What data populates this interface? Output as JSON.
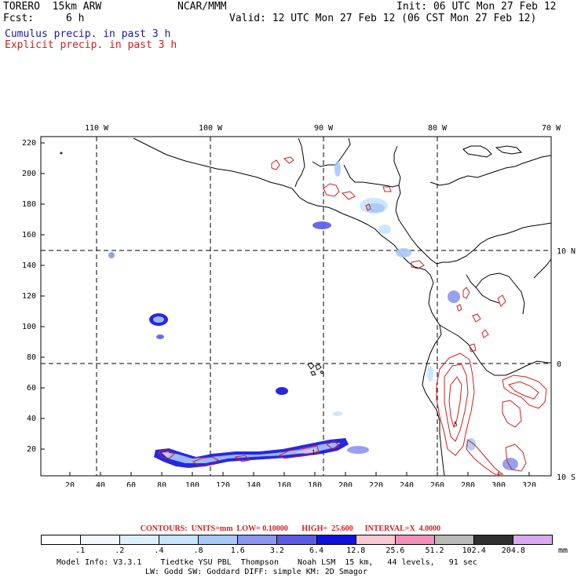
{
  "header": {
    "model_name": "TORERO  15km ARW",
    "org": "NCAR/MMM",
    "init": "Init: 06 UTC Mon 27 Feb 12",
    "fcst_label": "Fcst:",
    "fcst_value": "6 h",
    "valid": "Valid: 12 UTC Mon 27 Feb 12 (06 CST Mon 27 Feb 12)",
    "field1": "Cumulus precip. in past 3 h",
    "field2": "Explicit precip. in past 3 h"
  },
  "colors": {
    "cumulus": "#1a1aa6",
    "explicit": "#d21f1f",
    "land_outline": "#000000"
  },
  "map": {
    "top_lon_labels": [
      "110 W",
      "100 W",
      "90 W",
      "80 W",
      "70 W"
    ],
    "right_lat_labels": [
      "10 N",
      "0",
      "10 S"
    ],
    "y_ticks": [
      "220",
      "200",
      "180",
      "160",
      "140",
      "120",
      "100",
      "80",
      "60",
      "40",
      "20"
    ],
    "x_ticks": [
      "20",
      "40",
      "60",
      "80",
      "100",
      "120",
      "140",
      "160",
      "180",
      "200",
      "220",
      "240",
      "260",
      "280",
      "300",
      "320"
    ]
  },
  "contours": {
    "text": "CONTOURS:  UNITS=mm  LOW= 0.10000       HIGH=  25.600      INTERVAL=X  4.0000"
  },
  "colorbar": {
    "labels": [
      ".1",
      ".2",
      ".4",
      ".8",
      "1.6",
      "3.2",
      "6.4",
      "12.8",
      "25.6",
      "51.2",
      "102.4",
      "204.8"
    ],
    "units": "mm",
    "colors": [
      "#ffffff",
      "#f2f8ff",
      "#ddefff",
      "#c4e4ff",
      "#a8c8f8",
      "#8a96f0",
      "#5a5ae6",
      "#1010e0",
      "#f8c8d0",
      "#f090b8",
      "#b8b8b8",
      "#303030",
      "#d8a8f0"
    ]
  },
  "footer": {
    "line1": "Model Info: V3.3.1    Tiedtke YSU PBL  Thompson    Noah LSM  15 km,   44 levels,   91 sec",
    "line2": "LW: Godd SW: Goddard DIFF: simple KM: 2D Smagor"
  }
}
